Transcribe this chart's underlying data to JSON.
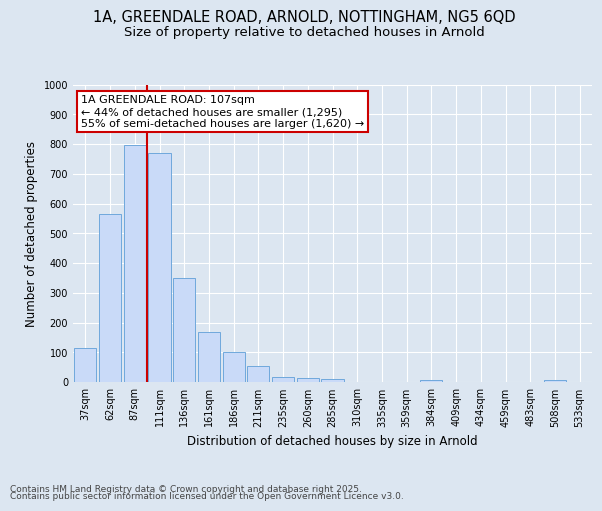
{
  "title_line1": "1A, GREENDALE ROAD, ARNOLD, NOTTINGHAM, NG5 6QD",
  "title_line2": "Size of property relative to detached houses in Arnold",
  "xlabel": "Distribution of detached houses by size in Arnold",
  "ylabel": "Number of detached properties",
  "categories": [
    "37sqm",
    "62sqm",
    "87sqm",
    "111sqm",
    "136sqm",
    "161sqm",
    "186sqm",
    "211sqm",
    "235sqm",
    "260sqm",
    "285sqm",
    "310sqm",
    "335sqm",
    "359sqm",
    "384sqm",
    "409sqm",
    "434sqm",
    "459sqm",
    "483sqm",
    "508sqm",
    "533sqm"
  ],
  "values": [
    115,
    565,
    795,
    770,
    350,
    168,
    100,
    53,
    18,
    15,
    10,
    0,
    0,
    0,
    8,
    0,
    0,
    0,
    0,
    8,
    0
  ],
  "bar_color": "#c9daf8",
  "bar_edge_color": "#6fa8dc",
  "vline_x": 2.5,
  "vline_color": "#cc0000",
  "annotation_text": "1A GREENDALE ROAD: 107sqm\n← 44% of detached houses are smaller (1,295)\n55% of semi-detached houses are larger (1,620) →",
  "annotation_box_facecolor": "#ffffff",
  "annotation_box_edgecolor": "#cc0000",
  "ylim": [
    0,
    1000
  ],
  "yticks": [
    0,
    100,
    200,
    300,
    400,
    500,
    600,
    700,
    800,
    900,
    1000
  ],
  "background_color": "#dce6f1",
  "grid_color": "#ffffff",
  "footer_line1": "Contains HM Land Registry data © Crown copyright and database right 2025.",
  "footer_line2": "Contains public sector information licensed under the Open Government Licence v3.0.",
  "title_fontsize": 10.5,
  "subtitle_fontsize": 9.5,
  "tick_fontsize": 7,
  "ylabel_fontsize": 8.5,
  "xlabel_fontsize": 8.5,
  "annotation_fontsize": 8,
  "footer_fontsize": 6.5
}
